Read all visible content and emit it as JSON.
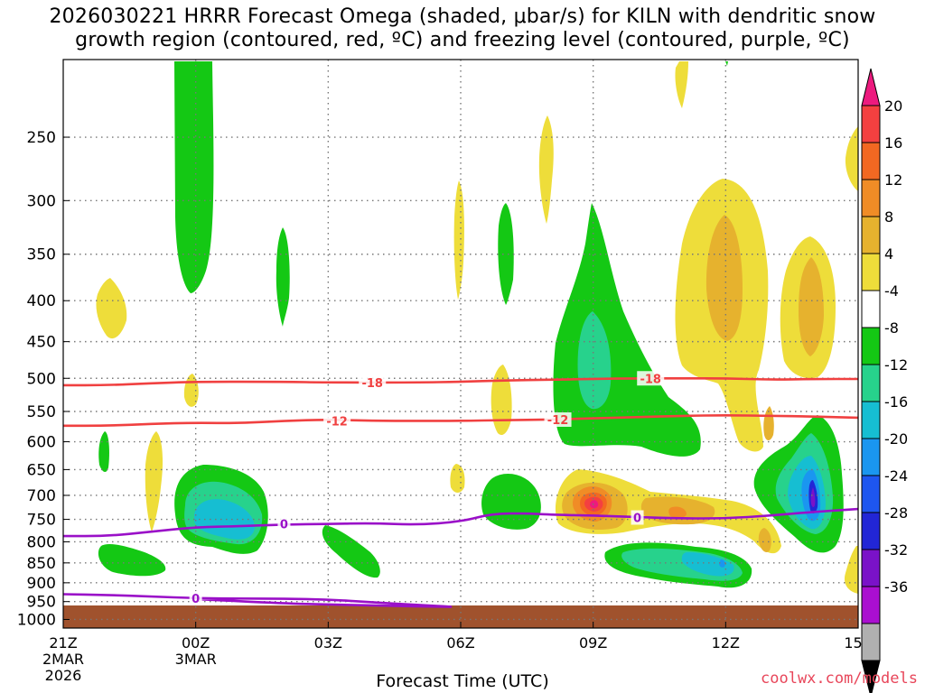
{
  "title": {
    "line1": "2026030221 HRRR Forecast Omega (shaded, μbar/s) for KILN with dendritic snow",
    "line2": "growth region (contoured, red, ºC) and freezing level (contoured, purple, ºC)"
  },
  "credit": "coolwx.com/models",
  "chart_data": {
    "type": "heatmap",
    "title": "2026030221 HRRR Forecast Omega (shaded, μbar/s) for KILN with dendritic snow growth region (contoured, red, ºC) and freezing level (contoured, purple, ºC)",
    "xlabel": "Forecast Time (UTC)",
    "ylabel": "",
    "x_range_hours": [
      0,
      18
    ],
    "y_range_mb": [
      200,
      1025
    ],
    "x_ticks": [
      {
        "h": 0,
        "label": "21Z"
      },
      {
        "h": 3,
        "label": "00Z"
      },
      {
        "h": 6,
        "label": "03Z"
      },
      {
        "h": 9,
        "label": "06Z"
      },
      {
        "h": 12,
        "label": "09Z"
      },
      {
        "h": 15,
        "label": "12Z"
      },
      {
        "h": 18,
        "label": "15Z"
      }
    ],
    "date_labels": [
      {
        "h": 0,
        "lines": [
          "2MAR",
          "2026"
        ]
      },
      {
        "h": 3,
        "lines": [
          "3MAR"
        ]
      }
    ],
    "y_ticks": [
      250,
      300,
      350,
      400,
      450,
      500,
      550,
      600,
      650,
      700,
      750,
      800,
      850,
      900,
      950,
      1000
    ],
    "grid": true,
    "colorbar": {
      "labels": [
        20,
        16,
        12,
        8,
        4,
        -4,
        -8,
        -12,
        -16,
        -20,
        -24,
        -28,
        -32,
        -36
      ],
      "colors": [
        "#ec1a7e",
        "#f44040",
        "#f26822",
        "#f08c26",
        "#e6b22e",
        "#eedd3a",
        "#ffffff",
        "#14c814",
        "#27d28c",
        "#16bed2",
        "#1a96f0",
        "#1e56f0",
        "#2226d6",
        "#7a12c8",
        "#aa0fd0",
        "#b0b0b0",
        "#000000"
      ]
    },
    "ground": {
      "color": "#a0522d",
      "pressure_mb": 990
    },
    "contours": [
      {
        "name": "dgz -18C",
        "color": "#f04040",
        "label": "-18",
        "points": [
          [
            0,
            510
          ],
          [
            1,
            510
          ],
          [
            2,
            507
          ],
          [
            3,
            505
          ],
          [
            5,
            505
          ],
          [
            6,
            506
          ],
          [
            8,
            506
          ],
          [
            9,
            505
          ],
          [
            10,
            503
          ],
          [
            11,
            502
          ],
          [
            12,
            501
          ],
          [
            13,
            500
          ],
          [
            14,
            500
          ],
          [
            15,
            500
          ],
          [
            16,
            502
          ],
          [
            17,
            501
          ],
          [
            18,
            501
          ]
        ],
        "label_at": [
          [
            7,
            506
          ],
          [
            13.3,
            500
          ]
        ]
      },
      {
        "name": "dgz -12C",
        "color": "#f04040",
        "label": "-12",
        "points": [
          [
            0,
            573
          ],
          [
            1,
            573
          ],
          [
            2,
            570
          ],
          [
            3,
            568
          ],
          [
            4,
            569
          ],
          [
            5,
            565
          ],
          [
            6,
            563
          ],
          [
            7,
            565
          ],
          [
            8,
            565
          ],
          [
            9,
            565
          ],
          [
            10,
            564
          ],
          [
            11,
            563
          ],
          [
            12,
            561
          ],
          [
            13,
            559
          ],
          [
            14,
            557
          ],
          [
            15,
            556
          ],
          [
            16,
            557
          ],
          [
            17,
            558
          ],
          [
            18,
            560
          ]
        ],
        "label_at": [
          [
            6.2,
            565
          ],
          [
            11.2,
            563
          ]
        ]
      },
      {
        "name": "freezing level upper",
        "color": "#9a10c8",
        "label": "0",
        "points": [
          [
            0,
            787
          ],
          [
            1,
            787
          ],
          [
            2,
            777
          ],
          [
            3,
            767
          ],
          [
            4,
            765
          ],
          [
            5,
            761
          ],
          [
            6,
            760
          ],
          [
            7,
            758
          ],
          [
            8,
            762
          ],
          [
            9,
            755
          ],
          [
            9.7,
            738
          ],
          [
            10.5,
            737
          ],
          [
            11,
            740
          ],
          [
            12,
            742
          ],
          [
            13,
            745
          ],
          [
            14,
            748
          ],
          [
            15,
            748
          ],
          [
            16,
            742
          ],
          [
            17,
            734
          ],
          [
            18,
            728
          ]
        ],
        "label_at": [
          [
            5,
            760
          ],
          [
            13,
            746
          ]
        ]
      },
      {
        "name": "freezing level lower",
        "color": "#9a10c8",
        "label": "0",
        "points": [
          [
            0,
            930
          ],
          [
            1,
            932
          ],
          [
            2,
            936
          ],
          [
            3,
            941
          ],
          [
            4,
            942
          ],
          [
            5,
            942
          ],
          [
            6,
            944
          ],
          [
            7,
            952
          ],
          [
            8,
            959
          ],
          [
            8.95,
            965
          ],
          [
            8.4,
            964
          ],
          [
            7.5,
            962
          ],
          [
            6,
            958
          ],
          [
            5,
            955
          ],
          [
            3,
            943
          ]
        ],
        "label_at": [
          [
            3,
            941
          ]
        ]
      }
    ],
    "shaded_features": [
      {
        "desc": "upper green column",
        "level": "-4 to -8",
        "x": 3.3,
        "y": 290,
        "rx": 0.45,
        "ry": 115
      },
      {
        "desc": "cold core 09Z",
        "level": "16 to 20",
        "x": 12.0,
        "y": 745,
        "rx": 0.35,
        "ry": 25
      },
      {
        "desc": "upper rising 12Z",
        "level": "4 to 12",
        "x": 15.0,
        "y": 420,
        "rx": 0.9,
        "ry": 125
      },
      {
        "desc": "low-level sinking 14Z",
        "level": "-8 to -28",
        "x": 17.1,
        "y": 740,
        "rx": 0.45,
        "ry": 70
      }
    ]
  }
}
